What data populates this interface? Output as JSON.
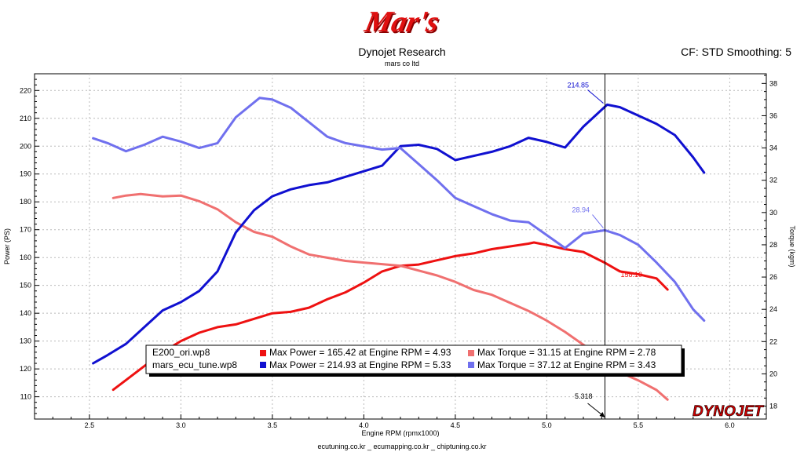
{
  "header": {
    "logo_text": "Mar's",
    "title": "Dynojet Research",
    "subtitle": "mars co ltd",
    "cf_label": "CF: STD Smoothing: 5"
  },
  "footer": {
    "text": "ecutuning.co.kr _ ecumapping.co.kr _ chiptuning.co.kr"
  },
  "brand_logo": "DYNOJET",
  "colors": {
    "ori_power": "#ee1111",
    "ori_torque": "#f07070",
    "tune_power": "#1010d0",
    "tune_torque": "#7070ee"
  },
  "chart_data": {
    "type": "line",
    "title": "Dynojet Research",
    "xlabel": "Engine RPM (rpmx1000)",
    "ylabel": "Power (PS)",
    "y2label": "Torque (kgm)",
    "xlim": [
      2.2,
      6.2
    ],
    "ylim": [
      102,
      226
    ],
    "y2lim": [
      17.2,
      38.6
    ],
    "xticks": [
      2.5,
      3.0,
      3.5,
      4.0,
      4.5,
      5.0,
      5.5,
      6.0
    ],
    "yticks": [
      110,
      120,
      130,
      140,
      150,
      160,
      170,
      180,
      190,
      200,
      210,
      220
    ],
    "y2ticks": [
      18,
      20,
      22,
      24,
      26,
      28,
      30,
      32,
      34,
      36,
      38
    ],
    "grid": true,
    "cursor": {
      "x": 5.318,
      "label": "5.318"
    },
    "annotations": [
      {
        "text": "214.85",
        "series": "tune_power",
        "x": 5.318,
        "y": 214.85
      },
      {
        "text": "28.94",
        "series": "tune_torque",
        "x": 5.318,
        "y": 28.94
      },
      {
        "text": "158.10",
        "series": "ori_power",
        "x": 5.318,
        "y": 158.1
      }
    ],
    "legend": {
      "placement": "bottom-left",
      "rows": [
        {
          "file": "E200_ori.wp8",
          "power": "Max Power = 165.42 at Engine RPM = 4.93",
          "torque": "Max Torque = 31.15 at Engine RPM = 2.78"
        },
        {
          "file": "mars_ecu_tune.wp8",
          "power": "Max Power = 214.93 at Engine RPM = 5.33",
          "torque": "Max Torque = 37.12 at Engine RPM = 3.43"
        }
      ]
    },
    "series": [
      {
        "id": "ori_power",
        "axis": "left",
        "x": [
          2.63,
          2.7,
          2.8,
          2.9,
          3.0,
          3.1,
          3.2,
          3.3,
          3.4,
          3.5,
          3.6,
          3.7,
          3.8,
          3.9,
          4.0,
          4.1,
          4.2,
          4.3,
          4.4,
          4.5,
          4.6,
          4.7,
          4.8,
          4.9,
          4.93,
          5.0,
          5.1,
          5.2,
          5.318,
          5.4,
          5.5,
          5.6,
          5.66
        ],
        "y": [
          112.5,
          116,
          121,
          126,
          130,
          133,
          135,
          136,
          138,
          140,
          140.5,
          142,
          145,
          147.5,
          151,
          155,
          157,
          157.5,
          159,
          160.5,
          161.5,
          163,
          164,
          165,
          165.4,
          164.5,
          163,
          162,
          158.1,
          155,
          154,
          152.5,
          148.5
        ]
      },
      {
        "id": "ori_torque",
        "axis": "right",
        "x": [
          2.63,
          2.7,
          2.78,
          2.9,
          3.0,
          3.1,
          3.2,
          3.3,
          3.4,
          3.5,
          3.6,
          3.7,
          3.8,
          3.9,
          4.0,
          4.1,
          4.2,
          4.3,
          4.4,
          4.5,
          4.6,
          4.7,
          4.8,
          4.9,
          5.0,
          5.1,
          5.2,
          5.318,
          5.4,
          5.5,
          5.6,
          5.66
        ],
        "y": [
          30.9,
          31.05,
          31.15,
          31.0,
          31.05,
          30.7,
          30.2,
          29.4,
          28.8,
          28.5,
          27.9,
          27.4,
          27.2,
          27.0,
          26.9,
          26.8,
          26.7,
          26.4,
          26.1,
          25.7,
          25.2,
          24.9,
          24.4,
          23.9,
          23.3,
          22.6,
          21.8,
          20.9,
          20.1,
          19.6,
          19.0,
          18.4
        ]
      },
      {
        "id": "tune_power",
        "axis": "left",
        "x": [
          2.52,
          2.6,
          2.7,
          2.8,
          2.9,
          3.0,
          3.1,
          3.2,
          3.3,
          3.4,
          3.5,
          3.6,
          3.7,
          3.8,
          3.9,
          4.0,
          4.1,
          4.2,
          4.3,
          4.4,
          4.5,
          4.6,
          4.7,
          4.8,
          4.9,
          5.0,
          5.1,
          5.2,
          5.33,
          5.4,
          5.5,
          5.6,
          5.7,
          5.8,
          5.86
        ],
        "y": [
          122,
          125,
          129,
          135,
          141,
          144,
          148,
          155,
          169,
          177,
          182,
          184.5,
          186,
          187,
          189,
          191,
          193,
          200,
          200.5,
          199,
          195,
          196.5,
          198,
          200,
          203,
          201.5,
          199.5,
          207,
          214.9,
          214,
          211,
          208,
          204,
          196,
          190.5
        ]
      },
      {
        "id": "tune_torque",
        "axis": "right",
        "x": [
          2.52,
          2.6,
          2.7,
          2.8,
          2.9,
          3.0,
          3.1,
          3.2,
          3.3,
          3.43,
          3.5,
          3.6,
          3.7,
          3.8,
          3.9,
          4.0,
          4.1,
          4.2,
          4.3,
          4.4,
          4.5,
          4.6,
          4.7,
          4.8,
          4.9,
          5.0,
          5.1,
          5.2,
          5.318,
          5.4,
          5.5,
          5.6,
          5.7,
          5.8,
          5.86
        ],
        "y": [
          34.6,
          34.3,
          33.8,
          34.2,
          34.7,
          34.4,
          34.0,
          34.3,
          35.9,
          37.1,
          37.0,
          36.5,
          35.6,
          34.7,
          34.3,
          34.1,
          33.9,
          34.0,
          33.0,
          32.0,
          30.9,
          30.4,
          29.9,
          29.5,
          29.4,
          28.6,
          27.8,
          28.7,
          28.9,
          28.6,
          28.0,
          26.9,
          25.7,
          24.0,
          23.3
        ]
      }
    ]
  }
}
